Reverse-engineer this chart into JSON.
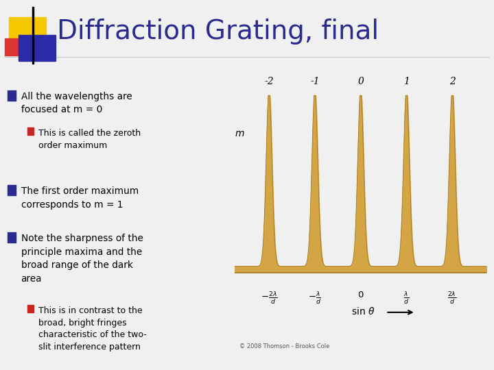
{
  "title": "Diffraction Grating, final",
  "title_color": "#2B2B8F",
  "title_fontsize": 28,
  "bg_color": "#F0F0F0",
  "bullet_color": "#2B2B8F",
  "sub_bullet_color": "#CC2222",
  "text_color": "#000000",
  "bullets": [
    "All the wavelengths are\nfocused at m = 0",
    "The first order maximum\ncorresponds to m = 1",
    "Note the sharpness of the\nprinciple maxima and the\nbroad range of the dark\narea"
  ],
  "sub_bullet_0": "This is called the zeroth\norder maximum",
  "sub_bullet_2": "This is in contrast to the\nbroad, bright fringes\ncharacteristic of the two-\nslit interference pattern",
  "m_labels": [
    "-2",
    "-1",
    "0",
    "1",
    "2"
  ],
  "m_positions": [
    -2,
    -1,
    0,
    1,
    2
  ],
  "peak_color": "#D4A545",
  "peak_edge_color": "#A07820",
  "copyright": "© 2008 Thomson - Brooks Cole",
  "sep_color": "#BBBBBB",
  "sq_yellow": "#F5C800",
  "sq_blue": "#2B2BAA",
  "sq_red": "#DD3333",
  "sq_purple": "#660066"
}
